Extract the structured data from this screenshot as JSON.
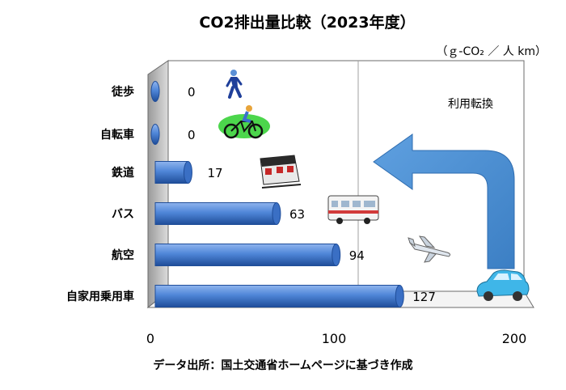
{
  "chart_data": {
    "type": "bar",
    "orientation": "horizontal",
    "title": "CO2排出量比較（2023年度）",
    "unit_label": "（ｇ-CO₂ ／ 人 km）",
    "categories": [
      "徒歩",
      "自転車",
      "鉄道",
      "バス",
      "航空",
      "自家用乗用車"
    ],
    "values": [
      0,
      0,
      17,
      63,
      94,
      127
    ],
    "value_labels": [
      "0",
      "0",
      "17",
      "63",
      "94",
      "127"
    ],
    "xlim": [
      0,
      200
    ],
    "xticks": [
      "0",
      "100",
      "200"
    ],
    "grid": true,
    "annotation": "利用転換",
    "source": "データ出所：国土交通省ホームページに基づき作成",
    "icons": [
      "walking-person-icon",
      "bicycle-icon",
      "train-icon",
      "bus-icon",
      "airplane-icon",
      "car-icon"
    ],
    "colors": {
      "bar": "#4f86d8",
      "bar_dark": "#1f4d99",
      "arrow": "#4a8fd2",
      "wall": "#d6d6d6"
    }
  }
}
